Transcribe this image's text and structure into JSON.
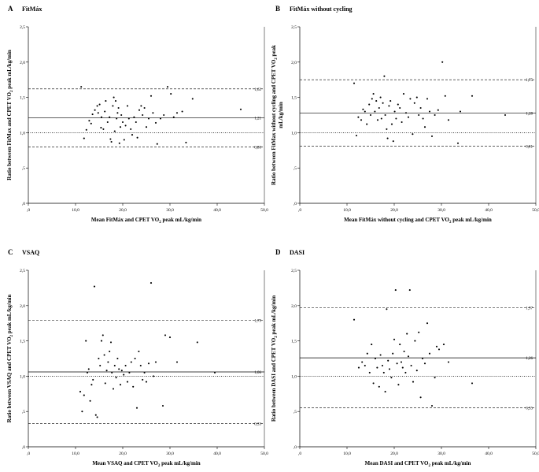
{
  "chart_data": [
    {
      "type": "scatter",
      "letter": "A",
      "title": "FitMáx",
      "xlabel": {
        "pre": "Mean FitMáx and CPET VO",
        "sub": "2",
        "post": " peak mL/kg/min"
      },
      "ylabel_lines": [
        {
          "pre": "Ratio between FitMax and CPET VO",
          "sub": "2",
          "post": " peak mL/kg/min"
        }
      ],
      "xlim": [
        0,
        50
      ],
      "ylim": [
        0,
        2.5
      ],
      "xticks": [
        0,
        10,
        20,
        30,
        40,
        50
      ],
      "xtick_labels": [
        ",0",
        "10,0",
        "20,0",
        "30,0",
        "40,0",
        "50,0"
      ],
      "yticks": [
        0,
        0.5,
        1.0,
        1.5,
        2.0,
        2.5
      ],
      "ytick_labels": [
        ",0",
        ",5",
        "1,0",
        "1,5",
        "2,0",
        "2,5"
      ],
      "ref_lines": [
        {
          "value": 1.62,
          "label": "1,62",
          "style": "dash"
        },
        {
          "value": 1.21,
          "label": "1,21",
          "style": "solid"
        },
        {
          "value": 1.0,
          "label": "",
          "style": "dot"
        },
        {
          "value": 0.8,
          "label": "0,80",
          "style": "dash"
        }
      ],
      "points": [
        [
          11.2,
          1.65
        ],
        [
          11.8,
          0.92
        ],
        [
          12.3,
          1.04
        ],
        [
          12.9,
          1.17
        ],
        [
          13.3,
          1.13
        ],
        [
          13.6,
          1.26
        ],
        [
          14.1,
          1.32
        ],
        [
          14.6,
          1.38
        ],
        [
          14.8,
          1.28
        ],
        [
          15.1,
          1.4
        ],
        [
          15.4,
          1.07
        ],
        [
          15.5,
          1.22
        ],
        [
          15.9,
          1.05
        ],
        [
          16.2,
          1.3
        ],
        [
          16.4,
          1.45
        ],
        [
          16.8,
          1.15
        ],
        [
          17.2,
          1.22
        ],
        [
          17.4,
          0.91
        ],
        [
          17.6,
          0.87
        ],
        [
          17.9,
          1.38
        ],
        [
          18.1,
          1.5
        ],
        [
          18.3,
          1.02
        ],
        [
          18.5,
          1.45
        ],
        [
          18.7,
          1.2
        ],
        [
          18.9,
          1.28
        ],
        [
          19.1,
          1.35
        ],
        [
          19.3,
          0.85
        ],
        [
          19.5,
          1.08
        ],
        [
          19.7,
          1.25
        ],
        [
          20.0,
          1.15
        ],
        [
          20.3,
          0.9
        ],
        [
          20.6,
          1.1
        ],
        [
          21.0,
          1.38
        ],
        [
          21.3,
          1.2
        ],
        [
          21.7,
          1.05
        ],
        [
          22.0,
          0.97
        ],
        [
          22.4,
          1.22
        ],
        [
          22.8,
          1.15
        ],
        [
          23.1,
          0.93
        ],
        [
          23.5,
          1.32
        ],
        [
          23.9,
          1.38
        ],
        [
          24.2,
          1.25
        ],
        [
          24.6,
          1.35
        ],
        [
          25.0,
          1.08
        ],
        [
          25.5,
          1.2
        ],
        [
          26.0,
          1.52
        ],
        [
          26.4,
          1.28
        ],
        [
          27.0,
          1.14
        ],
        [
          27.3,
          0.84
        ],
        [
          28.0,
          1.2
        ],
        [
          28.7,
          1.25
        ],
        [
          29.5,
          1.65
        ],
        [
          30.2,
          1.55
        ],
        [
          30.8,
          1.22
        ],
        [
          31.5,
          1.28
        ],
        [
          32.6,
          1.3
        ],
        [
          33.4,
          0.86
        ],
        [
          34.8,
          1.48
        ],
        [
          45.0,
          1.33
        ]
      ]
    },
    {
      "type": "scatter",
      "letter": "B",
      "title": "FitMáx without cycling",
      "xlabel": {
        "pre": "Mean FitMáx without cycling and CPET VO",
        "sub": "2",
        "post": " peak mL/kg/min"
      },
      "ylabel_lines": [
        {
          "pre": "Ratio between FitMax without cycling and CPET VO",
          "sub": "2",
          "post": " peak"
        },
        {
          "pre": "mL/kg/min",
          "sub": "",
          "post": ""
        }
      ],
      "xlim": [
        0,
        50
      ],
      "ylim": [
        0,
        2.5
      ],
      "xticks": [
        0,
        10,
        20,
        30,
        40,
        50
      ],
      "xtick_labels": [
        ",0",
        "10,0",
        "20,0",
        "30,0",
        "40,0",
        "50,0"
      ],
      "yticks": [
        0,
        0.5,
        1.0,
        1.5,
        2.0,
        2.5
      ],
      "ytick_labels": [
        ",0",
        ",5",
        "1,0",
        "1,5",
        "2,0",
        "2,5"
      ],
      "ref_lines": [
        {
          "value": 1.75,
          "label": "1,75",
          "style": "dash"
        },
        {
          "value": 1.28,
          "label": "1,28",
          "style": "solid"
        },
        {
          "value": 1.0,
          "label": "",
          "style": "dot"
        },
        {
          "value": 0.81,
          "label": "0,81",
          "style": "dash"
        }
      ],
      "points": [
        [
          11.5,
          1.7
        ],
        [
          12.0,
          0.96
        ],
        [
          12.4,
          1.22
        ],
        [
          13.0,
          1.18
        ],
        [
          13.4,
          1.33
        ],
        [
          13.8,
          1.3
        ],
        [
          14.2,
          1.12
        ],
        [
          14.7,
          1.4
        ],
        [
          15.0,
          1.25
        ],
        [
          15.3,
          1.48
        ],
        [
          15.6,
          1.55
        ],
        [
          15.9,
          1.3
        ],
        [
          16.2,
          1.45
        ],
        [
          16.5,
          1.18
        ],
        [
          16.8,
          1.35
        ],
        [
          17.1,
          1.5
        ],
        [
          17.3,
          1.2
        ],
        [
          17.6,
          1.42
        ],
        [
          17.9,
          1.8
        ],
        [
          18.1,
          1.25
        ],
        [
          18.4,
          1.05
        ],
        [
          18.6,
          0.92
        ],
        [
          18.9,
          1.38
        ],
        [
          19.2,
          1.45
        ],
        [
          19.5,
          1.12
        ],
        [
          19.8,
          0.88
        ],
        [
          20.1,
          1.3
        ],
        [
          20.4,
          1.2
        ],
        [
          20.8,
          1.4
        ],
        [
          21.2,
          1.35
        ],
        [
          21.6,
          1.15
        ],
        [
          22.0,
          1.55
        ],
        [
          22.5,
          1.28
        ],
        [
          23.0,
          1.22
        ],
        [
          23.4,
          1.48
        ],
        [
          23.9,
          0.98
        ],
        [
          24.3,
          1.42
        ],
        [
          24.8,
          1.5
        ],
        [
          25.2,
          1.25
        ],
        [
          25.6,
          1.35
        ],
        [
          26.1,
          1.2
        ],
        [
          26.5,
          1.08
        ],
        [
          27.0,
          1.48
        ],
        [
          27.5,
          1.3
        ],
        [
          28.0,
          0.95
        ],
        [
          28.6,
          1.25
        ],
        [
          29.3,
          1.32
        ],
        [
          30.2,
          2.0
        ],
        [
          30.8,
          1.52
        ],
        [
          31.5,
          1.18
        ],
        [
          33.5,
          0.85
        ],
        [
          34.0,
          1.3
        ],
        [
          36.5,
          1.52
        ],
        [
          43.5,
          1.25
        ]
      ]
    },
    {
      "type": "scatter",
      "letter": "C",
      "title": "VSAQ",
      "xlabel": {
        "pre": "Mean VSAQ and CPET VO",
        "sub": "2",
        "post": " peak mL/kg/min"
      },
      "ylabel_lines": [
        {
          "pre": "Ratio between VSAQ and CPET VO",
          "sub": "2",
          "post": " peak mL/kg/min"
        }
      ],
      "xlim": [
        0,
        50
      ],
      "ylim": [
        0,
        2.5
      ],
      "xticks": [
        0,
        10,
        20,
        30,
        40,
        50
      ],
      "xtick_labels": [
        ",0",
        "10,0",
        "20,0",
        "30,0",
        "40,0",
        "50,0"
      ],
      "yticks": [
        0,
        0.5,
        1.0,
        1.5,
        2.0,
        2.5
      ],
      "ytick_labels": [
        ",0",
        ",5",
        "1,0",
        "1,5",
        "2,0",
        "2,5"
      ],
      "ref_lines": [
        {
          "value": 1.79,
          "label": "1,79",
          "style": "dash"
        },
        {
          "value": 1.06,
          "label": "1,06",
          "style": "solid"
        },
        {
          "value": 1.0,
          "label": "",
          "style": "dot"
        },
        {
          "value": 0.33,
          "label": "0,33",
          "style": "dash"
        }
      ],
      "points": [
        [
          11.0,
          0.78
        ],
        [
          11.4,
          0.5
        ],
        [
          11.8,
          0.73
        ],
        [
          12.2,
          1.5
        ],
        [
          12.5,
          1.05
        ],
        [
          12.8,
          1.1
        ],
        [
          13.1,
          0.65
        ],
        [
          13.4,
          0.88
        ],
        [
          13.7,
          0.95
        ],
        [
          14.0,
          2.27
        ],
        [
          14.3,
          0.45
        ],
        [
          14.6,
          0.42
        ],
        [
          14.9,
          1.25
        ],
        [
          15.2,
          1.15
        ],
        [
          15.5,
          1.5
        ],
        [
          15.8,
          1.58
        ],
        [
          16.1,
          1.3
        ],
        [
          16.3,
          0.9
        ],
        [
          16.6,
          1.08
        ],
        [
          16.9,
          1.2
        ],
        [
          17.2,
          1.35
        ],
        [
          17.5,
          1.48
        ],
        [
          17.7,
          1.05
        ],
        [
          18.0,
          0.82
        ],
        [
          18.3,
          1.15
        ],
        [
          18.6,
          0.98
        ],
        [
          18.9,
          1.25
        ],
        [
          19.2,
          1.1
        ],
        [
          19.5,
          0.88
        ],
        [
          19.8,
          1.08
        ],
        [
          20.2,
          1.02
        ],
        [
          20.6,
          1.15
        ],
        [
          21.0,
          0.92
        ],
        [
          21.4,
          1.05
        ],
        [
          21.8,
          1.2
        ],
        [
          22.2,
          0.85
        ],
        [
          22.6,
          1.25
        ],
        [
          23.0,
          0.55
        ],
        [
          23.4,
          1.35
        ],
        [
          23.8,
          1.15
        ],
        [
          24.2,
          0.95
        ],
        [
          24.6,
          1.05
        ],
        [
          25.0,
          0.92
        ],
        [
          25.5,
          1.18
        ],
        [
          26.0,
          2.32
        ],
        [
          26.5,
          1.0
        ],
        [
          27.0,
          1.2
        ],
        [
          28.5,
          0.58
        ],
        [
          29.0,
          1.58
        ],
        [
          30.0,
          1.55
        ],
        [
          31.5,
          1.2
        ],
        [
          35.8,
          1.48
        ],
        [
          39.5,
          1.05
        ]
      ]
    },
    {
      "type": "scatter",
      "letter": "D",
      "title": "DASI",
      "xlabel": {
        "pre": "Mean DASI and CPET VO",
        "sub": "2",
        "post": " peak mL/kg/min"
      },
      "ylabel_lines": [
        {
          "pre": "Ratio between DASI and CPET VO",
          "sub": "2",
          "post": " peak mL/kg/min"
        }
      ],
      "xlim": [
        0,
        50
      ],
      "ylim": [
        0,
        2.5
      ],
      "xticks": [
        0,
        10,
        20,
        30,
        40,
        50
      ],
      "xtick_labels": [
        ",0",
        "10,0",
        "20,0",
        "30,0",
        "40,0",
        "50,0"
      ],
      "yticks": [
        0,
        0.5,
        1.0,
        1.5,
        2.0,
        2.5
      ],
      "ytick_labels": [
        ",0",
        ",5",
        "1,0",
        "1,5",
        "2,0",
        "2,5"
      ],
      "ref_lines": [
        {
          "value": 1.97,
          "label": "1,97",
          "style": "dash"
        },
        {
          "value": 1.26,
          "label": "1,26",
          "style": "solid"
        },
        {
          "value": 1.0,
          "label": "",
          "style": "dot"
        },
        {
          "value": 0.55,
          "label": "0,55",
          "style": "dash"
        }
      ],
      "points": [
        [
          11.5,
          1.8
        ],
        [
          12.5,
          1.12
        ],
        [
          13.2,
          1.2
        ],
        [
          13.8,
          1.15
        ],
        [
          14.3,
          1.32
        ],
        [
          14.8,
          1.05
        ],
        [
          15.2,
          1.45
        ],
        [
          15.6,
          0.9
        ],
        [
          16.0,
          1.25
        ],
        [
          16.4,
          1.12
        ],
        [
          16.8,
          0.85
        ],
        [
          17.1,
          1.3
        ],
        [
          17.5,
          1.15
        ],
        [
          17.8,
          1.05
        ],
        [
          18.1,
          0.78
        ],
        [
          18.4,
          1.95
        ],
        [
          18.7,
          1.22
        ],
        [
          19.0,
          1.1
        ],
        [
          19.4,
          0.98
        ],
        [
          19.7,
          1.32
        ],
        [
          20.0,
          1.52
        ],
        [
          20.3,
          2.22
        ],
        [
          20.6,
          1.18
        ],
        [
          20.9,
          0.88
        ],
        [
          21.2,
          1.45
        ],
        [
          21.5,
          1.2
        ],
        [
          21.8,
          1.12
        ],
        [
          22.1,
          1.35
        ],
        [
          22.4,
          1.05
        ],
        [
          22.7,
          1.6
        ],
        [
          23.0,
          1.28
        ],
        [
          23.3,
          2.22
        ],
        [
          23.6,
          1.15
        ],
        [
          24.0,
          0.92
        ],
        [
          24.4,
          1.5
        ],
        [
          24.8,
          1.08
        ],
        [
          25.2,
          1.62
        ],
        [
          25.6,
          0.7
        ],
        [
          26.0,
          1.25
        ],
        [
          26.5,
          1.18
        ],
        [
          27.0,
          1.75
        ],
        [
          27.5,
          1.32
        ],
        [
          28.0,
          0.58
        ],
        [
          28.6,
          0.98
        ],
        [
          29.0,
          1.42
        ],
        [
          29.5,
          1.38
        ],
        [
          30.5,
          1.45
        ],
        [
          31.5,
          1.2
        ],
        [
          36.5,
          0.9
        ]
      ]
    }
  ]
}
